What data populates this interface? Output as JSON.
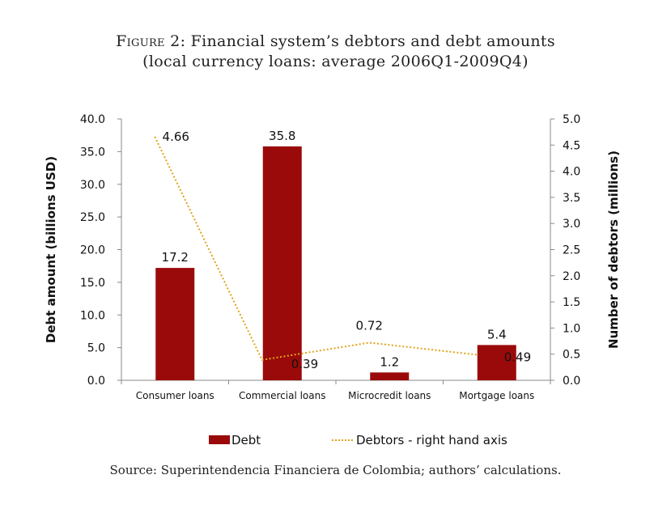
{
  "figure": {
    "label": "Figure 2:",
    "title_line1": "Financial system’s debtors and debt amounts",
    "title_line2": "(local currency loans: average 2006Q1-2009Q4)",
    "source": "Source: Superintendencia Financiera de Colombia; authors’ calculations."
  },
  "chart_data": {
    "type": "bar",
    "categories": [
      "Consumer loans",
      "Commercial loans",
      "Microcredit loans",
      "Mortgage loans"
    ],
    "series": [
      {
        "name": "Debt",
        "type": "bar",
        "axis": "left",
        "values": [
          17.2,
          35.8,
          1.2,
          5.4
        ],
        "color": "#9b0a0a"
      },
      {
        "name": "Debtors - right hand axis",
        "type": "line",
        "style": "dotted",
        "axis": "right",
        "values": [
          4.66,
          0.39,
          0.72,
          0.49
        ],
        "color": "#e0a419"
      }
    ],
    "data_labels_left": [
      "17.2",
      "35.8",
      "1.2",
      "5.4"
    ],
    "data_labels_right": [
      "4.66",
      "0.39",
      "0.72",
      "0.49"
    ],
    "ylabel": "Debt amount (billions USD)",
    "ylabel_right": "Number of debtors (millions)",
    "ylim": [
      0,
      40
    ],
    "ylim_right": [
      0,
      5
    ],
    "yticks": [
      "0.0",
      "5.0",
      "10.0",
      "15.0",
      "20.0",
      "25.0",
      "30.0",
      "35.0",
      "40.0"
    ],
    "yticks_right": [
      "0.0",
      "0.5",
      "1.0",
      "1.5",
      "2.0",
      "2.5",
      "3.0",
      "3.5",
      "4.0",
      "4.5",
      "5.0"
    ],
    "legend_position": "bottom",
    "grid": false
  }
}
